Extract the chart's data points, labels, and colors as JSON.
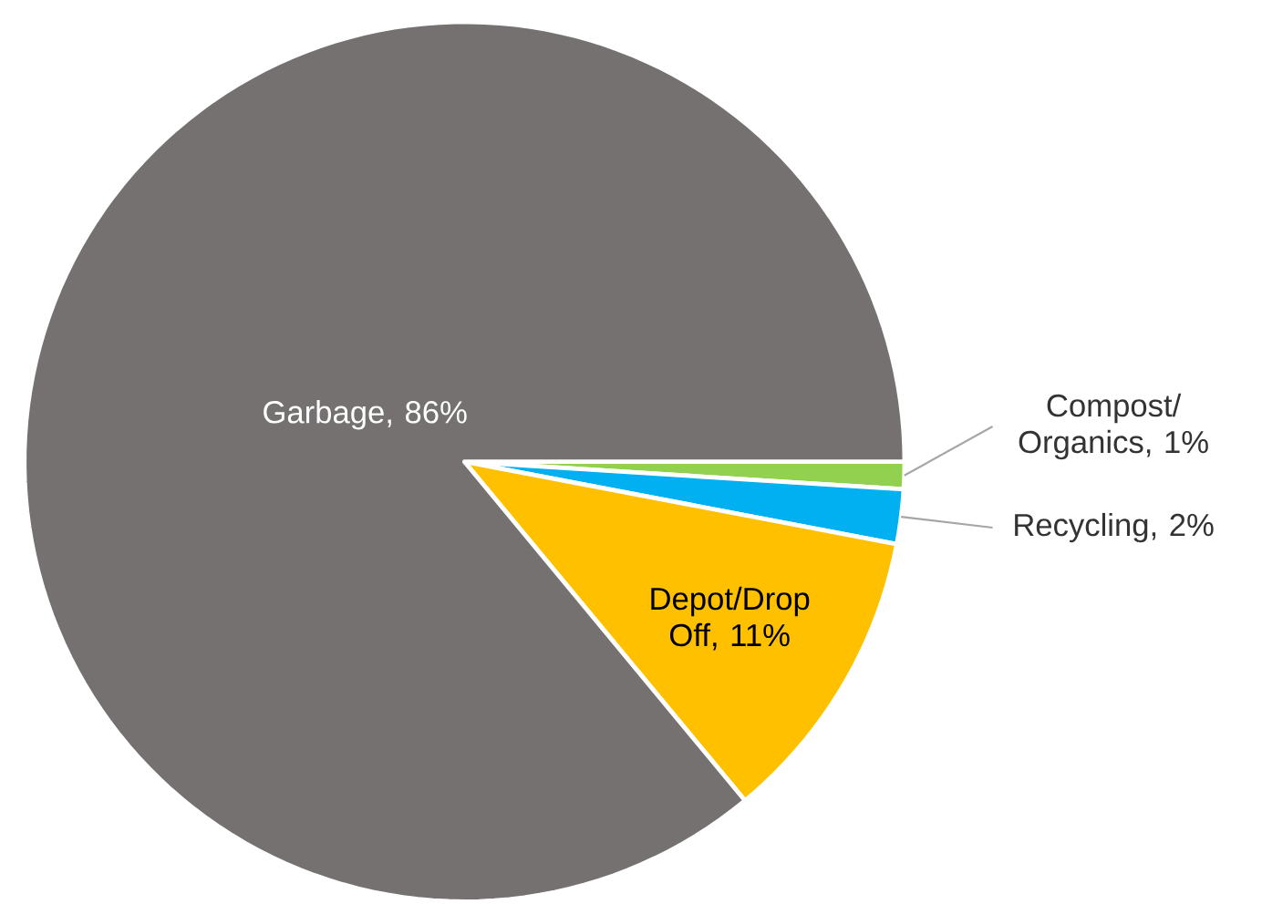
{
  "chart_data": {
    "type": "pie",
    "categories": [
      "Compost/ Organics",
      "Recycling",
      "Depot/Drop Off",
      "Garbage"
    ],
    "values": [
      1,
      2,
      11,
      86
    ],
    "colors": [
      "#92d050",
      "#00b0f0",
      "#ffc000",
      "#757171"
    ],
    "value_labels": [
      ", 1%",
      ", 2%",
      ", 11%",
      ", 86%"
    ]
  }
}
